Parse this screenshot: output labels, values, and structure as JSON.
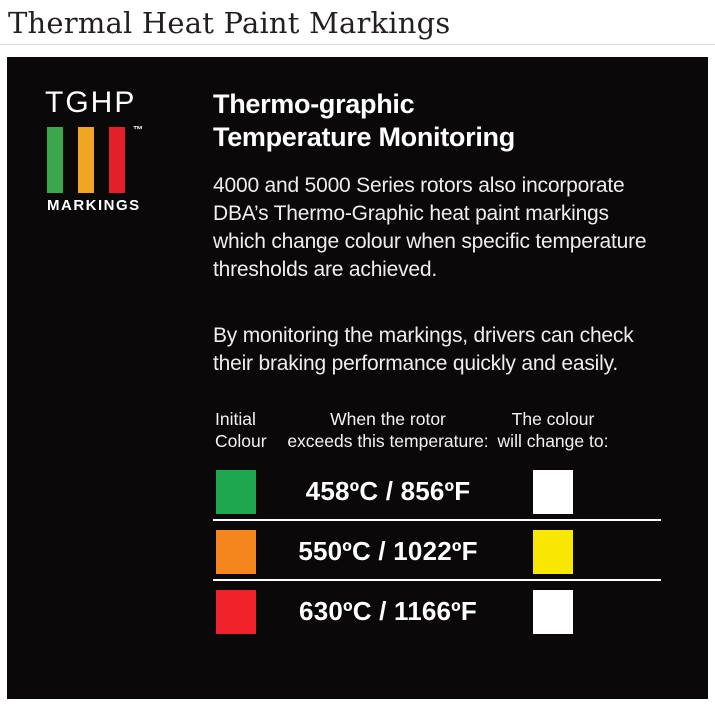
{
  "page": {
    "title": "Thermal Heat Paint Markings"
  },
  "panel": {
    "logo": {
      "name": "TGHP",
      "trademark": "™",
      "caption": "MARKINGS",
      "bar_colors": [
        "#3aa74b",
        "#f1a622",
        "#e32029"
      ]
    },
    "heading": "Thermo-graphic\nTemperature Monitoring",
    "paragraph1": "4000 and 5000 Series rotors also incorporate\nDBA’s Thermo-Graphic heat paint markings\nwhich change colour when specific temperature\nthresholds are achieved.",
    "paragraph2": "By monitoring the markings, drivers can check\ntheir braking performance quickly and easily.",
    "table": {
      "headers": [
        "Initial\nColour",
        "When the rotor\nexceeds this temperature:",
        "The colour\nwill change to:"
      ],
      "rows": [
        {
          "initial_color": "#1fa750",
          "temperature": "458ºC / 856ºF",
          "change_color": "#ffffff"
        },
        {
          "initial_color": "#f5861d",
          "temperature": "550ºC / 1022ºF",
          "change_color": "#f8e700"
        },
        {
          "initial_color": "#ee2228",
          "temperature": "630ºC / 1166ºF",
          "change_color": "#ffffff"
        }
      ]
    }
  }
}
